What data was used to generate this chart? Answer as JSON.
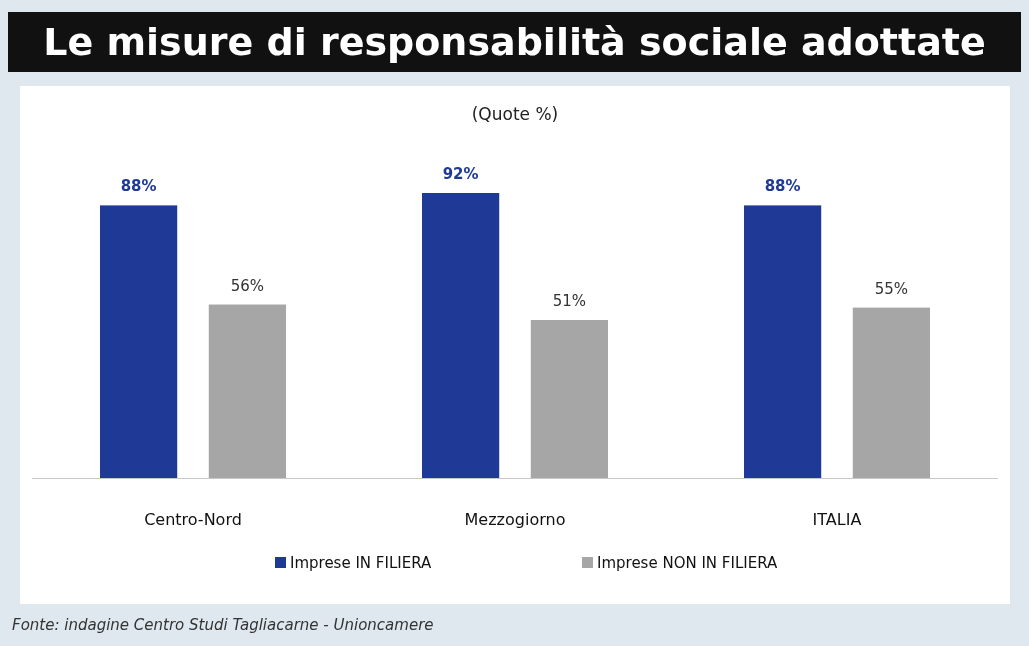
{
  "chart_data": {
    "type": "bar",
    "title": "Le misure di responsabilità sociale adottate",
    "subtitle": "(Quote %)",
    "categories": [
      "Centro-Nord",
      "Mezzogiorno",
      "ITALIA"
    ],
    "series": [
      {
        "name": "Imprese IN FILIERA",
        "color": "#1f3a96",
        "values": [
          88,
          92,
          88
        ],
        "value_labels": [
          "88%",
          "92%",
          "88%"
        ]
      },
      {
        "name": "Imprese NON IN FILIERA",
        "color": "#a6a6a6",
        "values": [
          56,
          51,
          55
        ],
        "value_labels": [
          "56%",
          "51%",
          "55%"
        ]
      }
    ],
    "legend": "bottom",
    "annotations": [
      "Fonte: indagine Centro Studi Tagliacarne - Unioncamere"
    ]
  }
}
